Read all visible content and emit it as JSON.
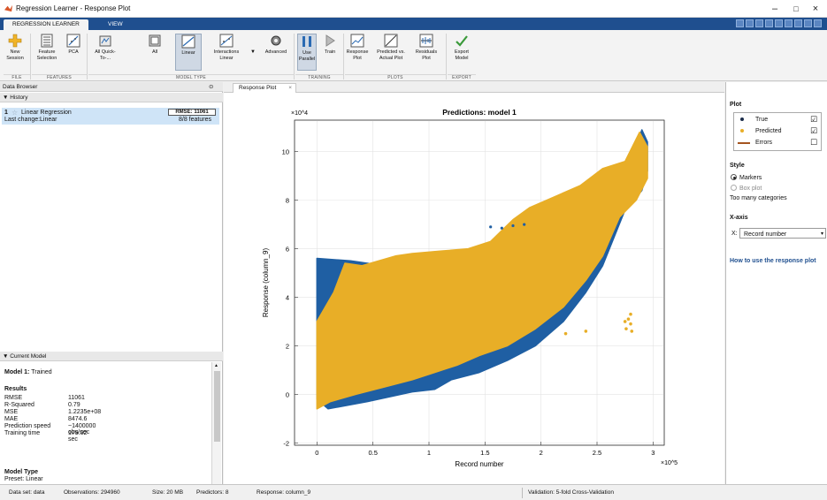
{
  "window": {
    "title": "Regression Learner - Response Plot",
    "minimize": "–",
    "maximize": "□",
    "close": "×"
  },
  "ribbon": {
    "tabs": [
      "REGRESSION LEARNER",
      "VIEW"
    ],
    "buttons": {
      "new_session": "New Session",
      "feature_selection": "Feature Selection",
      "pca": "PCA",
      "all_quick": "All Quick-To-...",
      "all": "All",
      "linear": "Linear",
      "interactions_linear": "Interactions Linear",
      "advanced": "Advanced",
      "use_parallel": "Use Parallel",
      "train": "Train",
      "response_plot": "Response Plot",
      "predicted_vs_actual": "Predicted vs. Actual Plot",
      "residuals_plot": "Residuals Plot",
      "export_model": "Export Model"
    },
    "groups": {
      "file": "FILE",
      "features": "FEATURES",
      "model_type": "MODEL TYPE",
      "training": "TRAINING",
      "plots": "PLOTS",
      "export": "EXPORT"
    }
  },
  "data_browser": {
    "title": "Data Browser",
    "history_header": "History",
    "history_item": {
      "index": "1",
      "name": "Linear Regression",
      "rmse_badge": "RMSE: 11061",
      "last_change_label": "Last change:",
      "last_change_value": "Linear",
      "features": "8/8 features"
    }
  },
  "current_model": {
    "header": "Current Model",
    "model_line_bold": "Model 1:",
    "model_line_value": "Trained",
    "results_header": "Results",
    "results": [
      {
        "label": "RMSE",
        "value": "11061"
      },
      {
        "label": "R-Squared",
        "value": "0.79"
      },
      {
        "label": "MSE",
        "value": "1.2235e+08"
      },
      {
        "label": "MAE",
        "value": "8474.6"
      },
      {
        "label": "Prediction speed",
        "value": "~1400000 obs/sec"
      },
      {
        "label": "Training time",
        "value": "179.02 sec"
      }
    ],
    "model_type_header": "Model Type",
    "preset": "Preset: Linear"
  },
  "document_tab": {
    "label": "Response Plot",
    "close": "×"
  },
  "chart_data": {
    "type": "scatter",
    "title": "Predictions: model 1",
    "xlabel": "Record number",
    "ylabel": "Response (column_9)",
    "x_exponent_label": "×10^5",
    "y_exponent_label": "×10^4",
    "xlim": [
      -0.2,
      3.1
    ],
    "ylim": [
      -2.1,
      11.3
    ],
    "xticks": [
      "0",
      "0.5",
      "1",
      "1.5",
      "2",
      "2.5",
      "3"
    ],
    "xtick_values": [
      0,
      0.5,
      1,
      1.5,
      2,
      2.5,
      3
    ],
    "yticks": [
      "-2",
      "0",
      "2",
      "4",
      "6",
      "8",
      "10"
    ],
    "ytick_values": [
      -2,
      0,
      2,
      4,
      6,
      8,
      10
    ],
    "grid": true,
    "series": [
      {
        "name": "True",
        "color": "#1f5fa3",
        "envelope_upper": [
          [
            0,
            5.6
          ],
          [
            0.3,
            5.5
          ],
          [
            0.6,
            5.3
          ],
          [
            0.9,
            5.2
          ],
          [
            1.2,
            5.3
          ],
          [
            1.45,
            5.5
          ],
          [
            1.6,
            6.0
          ],
          [
            1.8,
            6.6
          ],
          [
            2.0,
            7.0
          ],
          [
            2.2,
            7.4
          ],
          [
            2.45,
            8.0
          ],
          [
            2.65,
            8.6
          ],
          [
            2.8,
            9.6
          ],
          [
            2.9,
            10.9
          ],
          [
            2.95,
            10.4
          ]
        ],
        "envelope_lower": [
          [
            2.95,
            9.2
          ],
          [
            2.9,
            8.4
          ],
          [
            2.75,
            7.6
          ],
          [
            2.55,
            5.3
          ],
          [
            2.4,
            4.2
          ],
          [
            2.2,
            3.0
          ],
          [
            1.95,
            2.0
          ],
          [
            1.7,
            1.4
          ],
          [
            1.45,
            0.9
          ],
          [
            1.2,
            0.6
          ],
          [
            1.05,
            0.2
          ],
          [
            0.85,
            0.1
          ],
          [
            0.45,
            -0.3
          ],
          [
            0.1,
            -0.6
          ],
          [
            0,
            -0.2
          ]
        ]
      },
      {
        "name": "Predicted",
        "color": "#e8ae27",
        "envelope_upper": [
          [
            0,
            3.0
          ],
          [
            0.15,
            4.2
          ],
          [
            0.25,
            5.4
          ],
          [
            0.4,
            5.3
          ],
          [
            0.55,
            5.5
          ],
          [
            0.7,
            5.7
          ],
          [
            0.85,
            5.8
          ],
          [
            1.1,
            5.9
          ],
          [
            1.35,
            6.0
          ],
          [
            1.55,
            6.3
          ],
          [
            1.75,
            7.2
          ],
          [
            1.9,
            7.7
          ],
          [
            2.1,
            8.1
          ],
          [
            2.35,
            8.6
          ],
          [
            2.55,
            9.3
          ],
          [
            2.75,
            9.6
          ],
          [
            2.88,
            10.8
          ],
          [
            2.95,
            10.2
          ]
        ],
        "envelope_lower": [
          [
            2.95,
            8.9
          ],
          [
            2.85,
            8.0
          ],
          [
            2.7,
            7.3
          ],
          [
            2.55,
            5.7
          ],
          [
            2.4,
            4.7
          ],
          [
            2.2,
            3.6
          ],
          [
            1.95,
            2.7
          ],
          [
            1.7,
            2.0
          ],
          [
            1.45,
            1.6
          ],
          [
            1.25,
            1.2
          ],
          [
            1.05,
            0.9
          ],
          [
            0.85,
            0.6
          ],
          [
            0.6,
            0.3
          ],
          [
            0.35,
            0.0
          ],
          [
            0.12,
            -0.3
          ],
          [
            0,
            -0.6
          ]
        ]
      }
    ],
    "outlier_points": [
      {
        "x": 2.78,
        "y": 3.1
      },
      {
        "x": 2.8,
        "y": 2.9
      },
      {
        "x": 2.76,
        "y": 2.7
      },
      {
        "x": 2.81,
        "y": 2.6
      },
      {
        "x": 2.75,
        "y": 3.0
      },
      {
        "x": 2.8,
        "y": 3.3
      },
      {
        "x": 2.22,
        "y": 2.5
      },
      {
        "x": 2.4,
        "y": 2.6
      }
    ]
  },
  "right_panel": {
    "plot_header": "Plot",
    "legend": [
      {
        "label": "True",
        "checked": "☑",
        "color": "#1a2c4a"
      },
      {
        "label": "Predicted",
        "checked": "☑",
        "color": "#e8ae27"
      },
      {
        "label": "Errors",
        "checked": "☐",
        "color": "#a4541f"
      }
    ],
    "style_header": "Style",
    "style_markers": "Markers",
    "style_boxplot": "Box plot",
    "too_many": "Too many categories",
    "xaxis_header": "X-axis",
    "xaxis_prefix": "X:",
    "xaxis_value": "Record number",
    "help_link": "How to use the response plot"
  },
  "statusbar": {
    "dataset": "Data set: data",
    "observations": "Observations: 294960",
    "size": "Size: 20 MB",
    "predictors": "Predictors: 8",
    "response": "Response: column_9",
    "validation": "Validation: 5-fold Cross-Validation"
  }
}
